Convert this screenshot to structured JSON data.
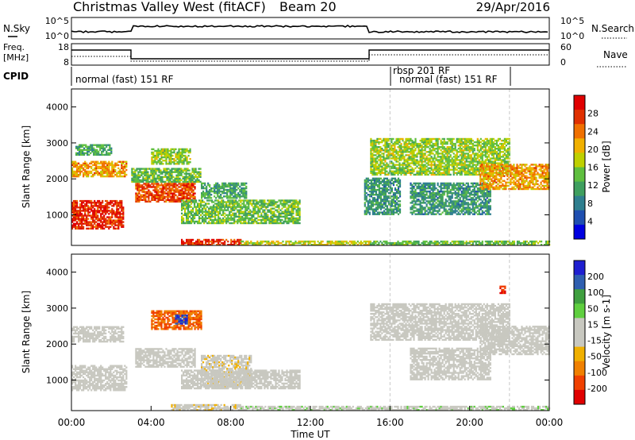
{
  "header": {
    "title": "Christmas Valley West (fitACF)",
    "beam": "Beam 20",
    "date": "29/Apr/2016"
  },
  "noise_panel": {
    "label": "N.Sky",
    "left_ticks": [
      "10^5",
      "10^0"
    ],
    "right_ticks": [
      "10^5",
      "10^0"
    ],
    "right_label": "N.Search"
  },
  "freq_panel": {
    "label_line1": "Freq.",
    "label_line2": "[MHz]",
    "left_ticks": [
      "18",
      "8"
    ],
    "right_ticks": [
      "60",
      "0"
    ],
    "right_label": "Nave"
  },
  "cpid": {
    "label": "CPID",
    "segments": [
      {
        "text": "normal (fast) 151 RF",
        "start_hour": 0
      },
      {
        "text": "rbsp 201 RF",
        "start_hour": 16
      },
      {
        "text": "normal (fast) 151 RF",
        "start_hour": 16.5
      }
    ]
  },
  "colors": {
    "power": [
      "#0000e0",
      "#1f4fb0",
      "#2f7f8f",
      "#3f9f5f",
      "#5fbf3f",
      "#bfd000",
      "#f0b000",
      "#f07000",
      "#e03000",
      "#e00000"
    ],
    "velocity": [
      "#e00000",
      "#f04000",
      "#f08000",
      "#f0b000",
      "#c8c8c0",
      "#c8c8c0",
      "#5fcf3f",
      "#3f9f3f",
      "#2f5fb0",
      "#1f1fd0"
    ],
    "grid_line": "#c8c8c8"
  },
  "chart_data": [
    {
      "type": "heatmap",
      "name": "power",
      "ylabel": "Slant Range [km]",
      "yticks": [
        "1000",
        "2000",
        "3000",
        "4000"
      ],
      "ylim": [
        150,
        4500
      ],
      "xlim": [
        0,
        24
      ],
      "colorbar": {
        "label": "Power [dB]",
        "ticks": [
          "4",
          "8",
          "12",
          "16",
          "20",
          "24",
          "28"
        ],
        "range": [
          0,
          32
        ]
      },
      "patches": [
        {
          "t0": 0.0,
          "t1": 2.6,
          "r0": 600,
          "r1": 1400,
          "value": 28
        },
        {
          "t0": 0.0,
          "t1": 2.8,
          "r0": 2050,
          "r1": 2500,
          "value": 22
        },
        {
          "t0": 0.2,
          "t1": 2.0,
          "r0": 2650,
          "r1": 2950,
          "value": 12
        },
        {
          "t0": 3.2,
          "t1": 6.2,
          "r0": 1350,
          "r1": 1850,
          "value": 26
        },
        {
          "t0": 3.0,
          "t1": 6.5,
          "r0": 1900,
          "r1": 2300,
          "value": 14
        },
        {
          "t0": 4.0,
          "t1": 6.0,
          "r0": 2400,
          "r1": 2850,
          "value": 16
        },
        {
          "t0": 5.5,
          "t1": 11.5,
          "r0": 750,
          "r1": 1400,
          "value": 14
        },
        {
          "t0": 6.5,
          "t1": 8.8,
          "r0": 1450,
          "r1": 1900,
          "value": 12
        },
        {
          "t0": 5.5,
          "t1": 8.5,
          "r0": 150,
          "r1": 300,
          "value": 28
        },
        {
          "t0": 8.5,
          "t1": 15.0,
          "r0": 150,
          "r1": 250,
          "value": 18
        },
        {
          "t0": 14.7,
          "t1": 16.5,
          "r0": 1000,
          "r1": 2000,
          "value": 10
        },
        {
          "t0": 15.0,
          "t1": 22.0,
          "r0": 2100,
          "r1": 3100,
          "value": 16
        },
        {
          "t0": 17.0,
          "t1": 21.0,
          "r0": 1000,
          "r1": 1900,
          "value": 10
        },
        {
          "t0": 20.5,
          "t1": 24.0,
          "r0": 1700,
          "r1": 2400,
          "value": 22
        },
        {
          "t0": 15.0,
          "t1": 24.0,
          "r0": 150,
          "r1": 260,
          "value": 14
        }
      ]
    },
    {
      "type": "heatmap",
      "name": "velocity",
      "ylabel": "Slant Range [km]",
      "yticks": [
        "1000",
        "2000",
        "3000",
        "4000"
      ],
      "ylim": [
        150,
        4500
      ],
      "xlim": [
        0,
        24
      ],
      "xlabel": "Time UT",
      "xticks": [
        "00:00",
        "04:00",
        "08:00",
        "12:00",
        "16:00",
        "20:00",
        "00:00"
      ],
      "colorbar": {
        "label": "Velocity [m s-1]",
        "ticks": [
          "-200",
          "-100",
          "-50",
          "-15",
          "15",
          "50",
          "100",
          "200"
        ],
        "range": [
          -250,
          250
        ]
      },
      "patches": [
        {
          "t0": 0.0,
          "t1": 2.8,
          "r0": 700,
          "r1": 1400,
          "value": 0
        },
        {
          "t0": 0.0,
          "t1": 2.6,
          "r0": 2050,
          "r1": 2500,
          "value": 0
        },
        {
          "t0": 3.2,
          "t1": 6.2,
          "r0": 1350,
          "r1": 1850,
          "value": 0
        },
        {
          "t0": 4.0,
          "t1": 6.5,
          "r0": 2400,
          "r1": 2900,
          "value": -150
        },
        {
          "t0": 5.2,
          "t1": 5.8,
          "r0": 2550,
          "r1": 2800,
          "value": 200
        },
        {
          "t0": 6.5,
          "t1": 9.0,
          "r0": 800,
          "r1": 1700,
          "value": -40
        },
        {
          "t0": 5.5,
          "t1": 11.5,
          "r0": 750,
          "r1": 1250,
          "value": 0
        },
        {
          "t0": 5.0,
          "t1": 8.5,
          "r0": 150,
          "r1": 320,
          "value": -40
        },
        {
          "t0": 8.5,
          "t1": 15.0,
          "r0": 150,
          "r1": 250,
          "value": 40
        },
        {
          "t0": 15.0,
          "t1": 22.0,
          "r0": 2100,
          "r1": 3100,
          "value": 0
        },
        {
          "t0": 17.0,
          "t1": 21.0,
          "r0": 1000,
          "r1": 1900,
          "value": 0
        },
        {
          "t0": 20.5,
          "t1": 24.0,
          "r0": 1700,
          "r1": 2500,
          "value": 0
        },
        {
          "t0": 15.0,
          "t1": 24.0,
          "r0": 150,
          "r1": 260,
          "value": 40
        },
        {
          "t0": 21.5,
          "t1": 21.8,
          "r0": 3400,
          "r1": 3600,
          "value": -200
        }
      ]
    }
  ]
}
